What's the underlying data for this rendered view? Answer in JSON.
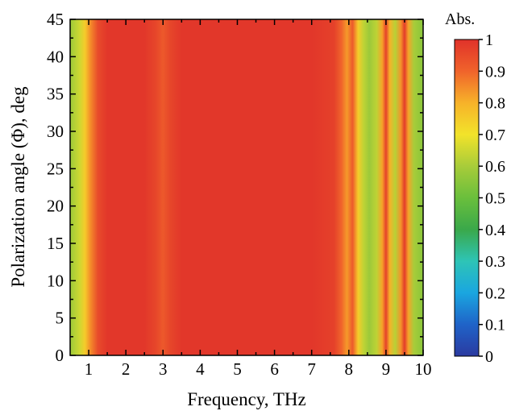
{
  "chart_data": {
    "type": "heatmap",
    "title": "",
    "xlabel": "Frequency, THz",
    "ylabel": "Polarization angle (Φ), deg",
    "xlim": [
      0.5,
      10
    ],
    "ylim": [
      0,
      45
    ],
    "x_ticks": [
      "1",
      "2",
      "3",
      "4",
      "5",
      "6",
      "7",
      "8",
      "9",
      "10"
    ],
    "y_ticks": [
      "0",
      "5",
      "10",
      "15",
      "20",
      "25",
      "30",
      "35",
      "40",
      "45"
    ],
    "colorbar": {
      "title": "Abs.",
      "range": [
        0,
        1
      ],
      "ticks": [
        "0",
        "0.1",
        "0.2",
        "0.3",
        "0.4",
        "0.5",
        "0.6",
        "0.7",
        "0.8",
        "0.9",
        "1"
      ],
      "colors": [
        "#2b3aa0",
        "#1f63c8",
        "#1aa6e0",
        "#2ec4b6",
        "#3aa84a",
        "#6abf3c",
        "#a8cc3a",
        "#f2e32a",
        "#f7b229",
        "#f0632b",
        "#e0322a"
      ]
    },
    "absorption_vs_frequency": {
      "frequency": [
        0.5,
        0.75,
        0.9,
        1.05,
        1.25,
        1.5,
        2.0,
        2.5,
        2.8,
        3.0,
        3.2,
        3.5,
        4.0,
        5.0,
        6.0,
        7.0,
        7.6,
        7.8,
        7.95,
        8.1,
        8.25,
        8.4,
        8.55,
        8.75,
        8.9,
        9.0,
        9.1,
        9.25,
        9.4,
        9.5,
        9.6,
        9.75,
        10.0
      ],
      "absorption": [
        0.58,
        0.65,
        0.75,
        0.85,
        0.95,
        0.99,
        0.99,
        0.99,
        0.96,
        0.92,
        0.96,
        0.99,
        0.99,
        0.99,
        0.99,
        0.99,
        0.97,
        0.9,
        0.83,
        0.92,
        0.75,
        0.63,
        0.58,
        0.63,
        0.82,
        0.97,
        0.8,
        0.62,
        0.84,
        0.98,
        0.82,
        0.6,
        0.55
      ]
    },
    "grid": false
  }
}
